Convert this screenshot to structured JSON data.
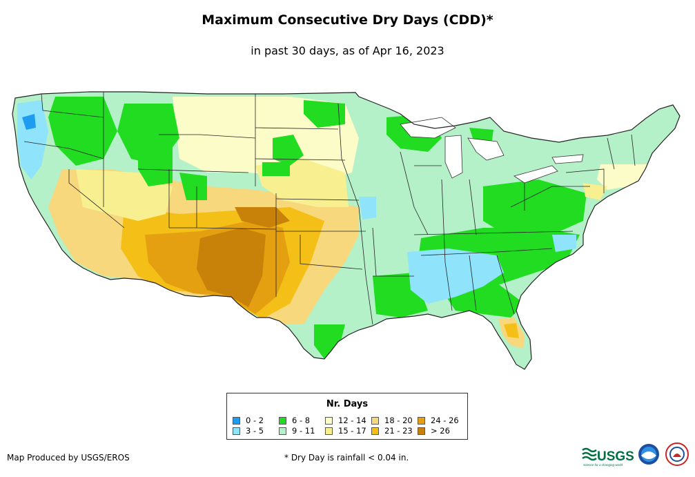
{
  "title": "Maximum Consecutive Dry Days (CDD)*",
  "subtitle": "in past 30 days, as of Apr 16, 2023",
  "legend": {
    "title": "Nr. Days",
    "items": [
      {
        "label": "0 - 2",
        "color": "#1e9cf0"
      },
      {
        "label": "3 - 5",
        "color": "#8fe3fa"
      },
      {
        "label": "6 - 8",
        "color": "#22dc22"
      },
      {
        "label": "9 - 11",
        "color": "#b4f0c8"
      },
      {
        "label": "12 - 14",
        "color": "#fcfcc8"
      },
      {
        "label": "15 - 17",
        "color": "#f8f090"
      },
      {
        "label": "18 - 20",
        "color": "#f8d87c"
      },
      {
        "label": "21 - 23",
        "color": "#f4c018"
      },
      {
        "label": "24 - 26",
        "color": "#e4a010"
      },
      {
        "label": "> 26",
        "color": "#c8820a"
      }
    ]
  },
  "credit": "Map Produced by USGS/EROS",
  "footnote": "* Dry Day is rainfall < 0.04 in.",
  "logos": {
    "usgs": "USGS",
    "usgs_tagline": "science for a changing world"
  }
}
